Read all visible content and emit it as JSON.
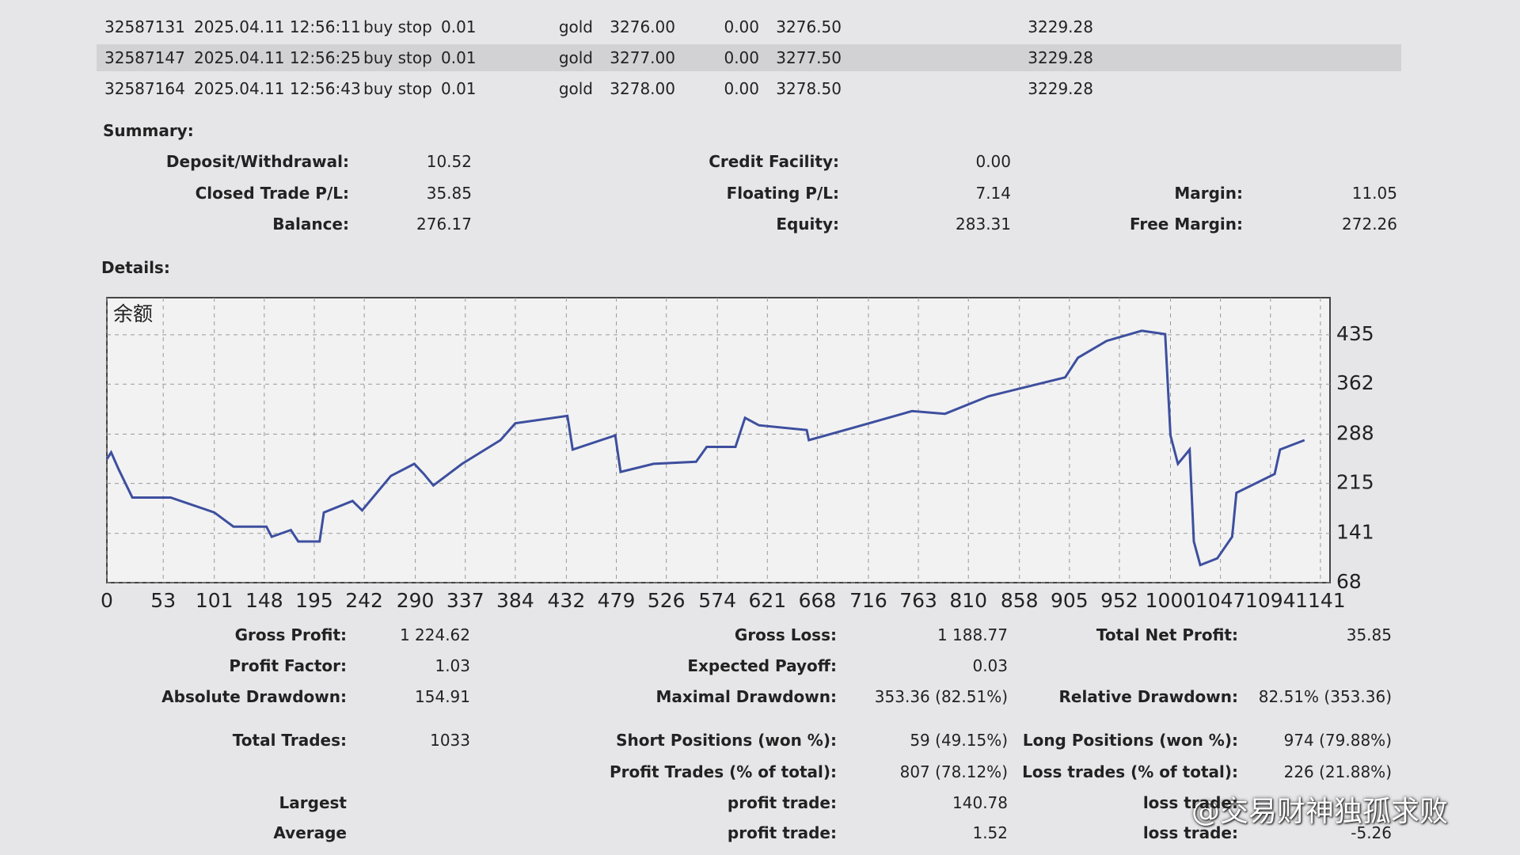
{
  "table": {
    "rows": [
      [
        "32587131",
        "2025.04.11 12:56:11",
        "buy stop",
        "0.01",
        "gold",
        "3276.00",
        "0.00",
        "3276.50",
        "3229.28"
      ],
      [
        "32587147",
        "2025.04.11 12:56:25",
        "buy stop",
        "0.01",
        "gold",
        "3277.00",
        "0.00",
        "3277.50",
        "3229.28"
      ],
      [
        "32587164",
        "2025.04.11 12:56:43",
        "buy stop",
        "0.01",
        "gold",
        "3278.00",
        "0.00",
        "3278.50",
        "3229.28"
      ]
    ]
  },
  "summary": {
    "title": "Summary:",
    "items": [
      {
        "label": "Deposit/Withdrawal:",
        "value": "10.52"
      },
      {
        "label": "Closed Trade P/L:",
        "value": "35.85"
      },
      {
        "label": "Balance:",
        "value": "276.17"
      },
      {
        "label": "Credit Facility:",
        "value": "0.00"
      },
      {
        "label": "Floating P/L:",
        "value": "7.14"
      },
      {
        "label": "Equity:",
        "value": "283.31"
      },
      {
        "label": "Margin:",
        "value": "11.05"
      },
      {
        "label": "Free Margin:",
        "value": "272.26"
      }
    ]
  },
  "details": {
    "title": "Details:"
  },
  "chart_data": {
    "type": "line",
    "title": "余额",
    "x": [
      0,
      4,
      11,
      24,
      60,
      101,
      119,
      150,
      155,
      173,
      180,
      200,
      204,
      231,
      240,
      267,
      289,
      298,
      307,
      334,
      370,
      384,
      433,
      438,
      478,
      483,
      514,
      554,
      564,
      591,
      600,
      613,
      658,
      660,
      703,
      757,
      788,
      829,
      901,
      913,
      940,
      973,
      995,
      1000,
      1007,
      1018,
      1022,
      1028,
      1044,
      1058,
      1062,
      1098,
      1103,
      1126
    ],
    "series": [
      {
        "color": "#3d4f9e",
        "values": [
          251,
          261,
          236,
          194,
          194,
          172,
          151,
          151,
          136,
          146,
          129,
          129,
          172,
          189,
          175,
          226,
          244,
          229,
          212,
          244,
          279,
          304,
          315,
          265,
          286,
          232,
          244,
          247,
          269,
          269,
          312,
          301,
          294,
          279,
          298,
          322,
          318,
          344,
          372,
          401,
          426,
          441,
          436,
          286,
          244,
          265,
          129,
          94,
          104,
          136,
          201,
          229,
          265,
          279
        ]
      }
    ],
    "xlim": [
      0,
      1150
    ],
    "ylim": [
      68,
      490
    ],
    "xticks": [
      0,
      53,
      101,
      148,
      195,
      242,
      290,
      337,
      384,
      432,
      479,
      526,
      574,
      621,
      668,
      716,
      763,
      810,
      858,
      905,
      952,
      1000,
      1047,
      1094,
      1141
    ],
    "yticks": [
      68,
      141,
      215,
      288,
      362,
      435
    ],
    "grid": true
  },
  "stats": {
    "items": [
      {
        "label": "Gross Profit:",
        "value": "1 224.62"
      },
      {
        "label": "Gross Loss:",
        "value": "1 188.77"
      },
      {
        "label": "Total Net Profit:",
        "value": "35.85"
      },
      {
        "label": "Profit Factor:",
        "value": "1.03"
      },
      {
        "label": "Expected Payoff:",
        "value": "0.03"
      },
      {
        "label": "Absolute Drawdown:",
        "value": "154.91"
      },
      {
        "label": "Maximal Drawdown:",
        "value": "353.36 (82.51%)"
      },
      {
        "label": "Relative Drawdown:",
        "value": "82.51% (353.36)"
      },
      {
        "label": "Total Trades:",
        "value": "1033"
      },
      {
        "label": "Short Positions (won %):",
        "value": "59 (49.15%)"
      },
      {
        "label": "Long Positions (won %):",
        "value": "974 (79.88%)"
      },
      {
        "label": "Profit Trades (% of total):",
        "value": "807 (78.12%)"
      },
      {
        "label": "Loss trades (% of total):",
        "value": "226 (21.88%)"
      },
      {
        "label": "Largest"
      },
      {
        "label": "profit trade:",
        "value": "140.78"
      },
      {
        "label": "loss trade:"
      },
      {
        "label": "Average"
      },
      {
        "label": "profit trade:",
        "value": "1.52"
      },
      {
        "label": "loss trade:",
        "value": "-5.26"
      }
    ]
  },
  "watermark": "@交易财神独孤求败"
}
